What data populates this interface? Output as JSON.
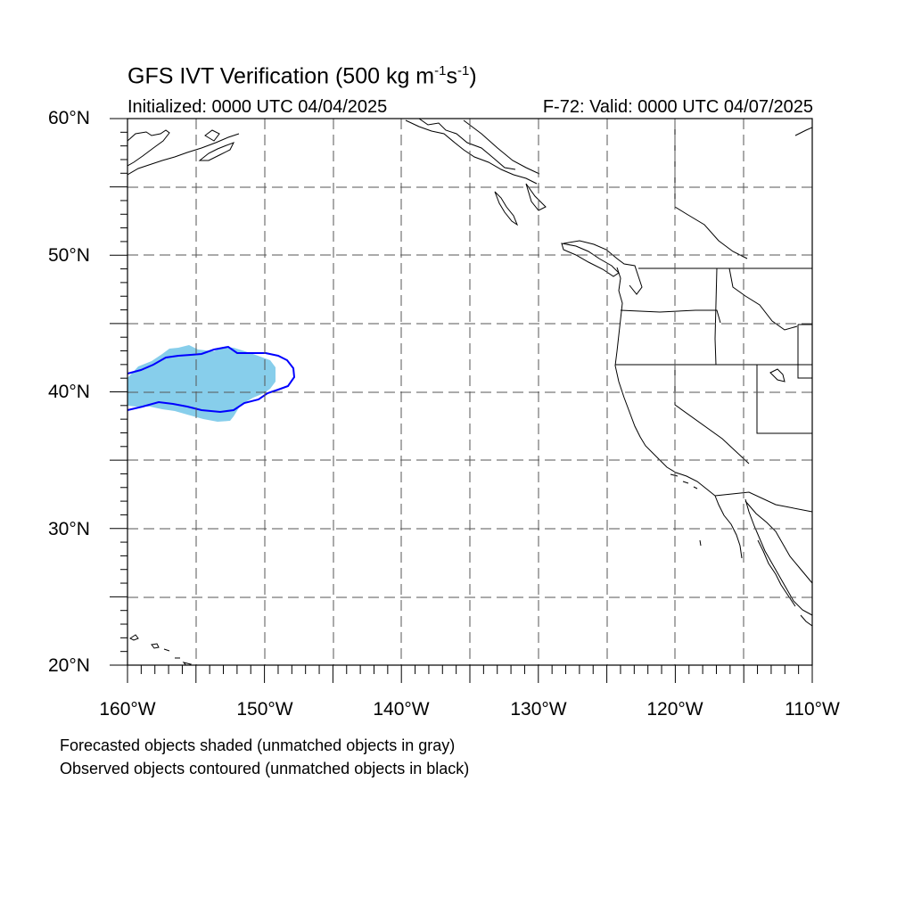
{
  "figure": {
    "title_prefix": "GFS IVT Verification (500 kg m",
    "title_exp1": "-1",
    "title_mid": "s",
    "title_exp2": "-1",
    "title_suffix": ")",
    "init_label": "Initialized: 0000 UTC 04/04/2025",
    "valid_label": "F-72: Valid: 0000 UTC 04/07/2025",
    "notes": [
      "Forecasted objects shaded (unmatched objects in gray)",
      "Observed objects contoured (unmatched objects in black)"
    ]
  },
  "map": {
    "lon_range": [
      -160,
      -110
    ],
    "lat_range": [
      20,
      60
    ],
    "lat_labels": [
      "60°N",
      "50°N",
      "40°N",
      "30°N",
      "20°N"
    ],
    "lon_labels": [
      "160°W",
      "150°W",
      "140°W",
      "130°W",
      "120°W",
      "110°W"
    ],
    "colors": {
      "forecast_fill": "#87ceeb",
      "observed_contour": "#0000ff",
      "coastline": "#000000",
      "grid": "#555555"
    },
    "forecast_object": {
      "lon_extent": [
        -160,
        -149.2
      ],
      "lat_extent": [
        37.9,
        43.3
      ]
    },
    "observed_object": {
      "lon_extent": [
        -160,
        -147.9
      ],
      "lat_extent": [
        38.6,
        43.2
      ]
    }
  }
}
